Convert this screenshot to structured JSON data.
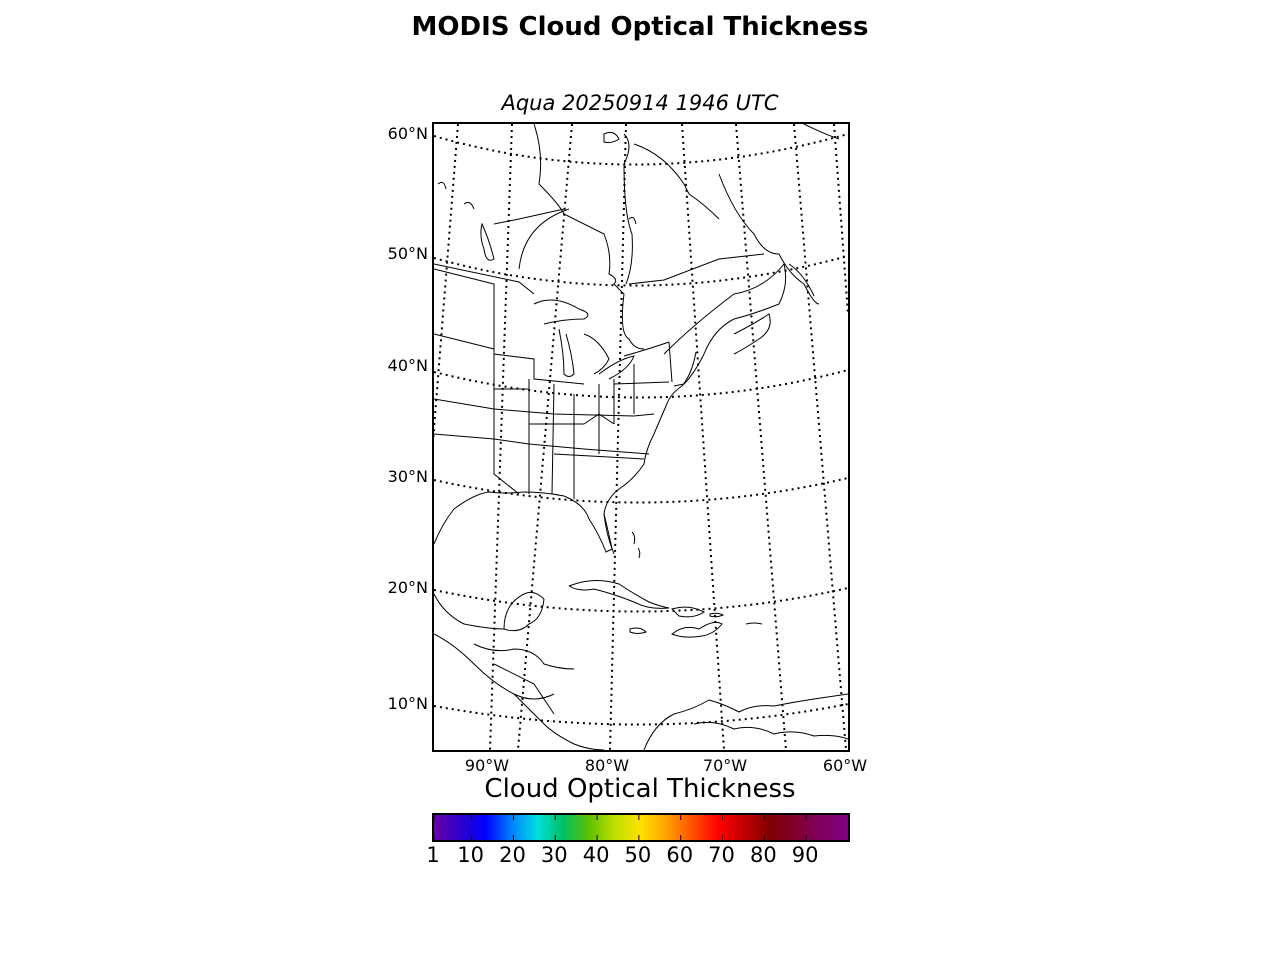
{
  "title": "MODIS Cloud Optical Thickness",
  "subtitle": "Aqua 20250914 1946 UTC",
  "map": {
    "lat_labels": [
      "60°N",
      "50°N",
      "40°N",
      "30°N",
      "20°N",
      "10°N"
    ],
    "lon_labels": [
      "90°W",
      "80°W",
      "70°W",
      "60°W"
    ],
    "graticule_style": "dotted",
    "features": [
      "coastlines",
      "country borders",
      "state borders"
    ]
  },
  "colorbar": {
    "label": "Cloud Optical Thickness",
    "ticks": [
      "1",
      "10",
      "20",
      "30",
      "40",
      "50",
      "60",
      "70",
      "80",
      "90"
    ],
    "range": [
      1,
      100
    ],
    "colors": [
      "#6b00a8",
      "#2d00c8",
      "#0000ff",
      "#0080ff",
      "#00e0e0",
      "#00c060",
      "#60c000",
      "#c0e000",
      "#ffe000",
      "#ffa000",
      "#ff5000",
      "#ff0000",
      "#c00000",
      "#800000",
      "#800030",
      "#800060",
      "#800080"
    ]
  }
}
